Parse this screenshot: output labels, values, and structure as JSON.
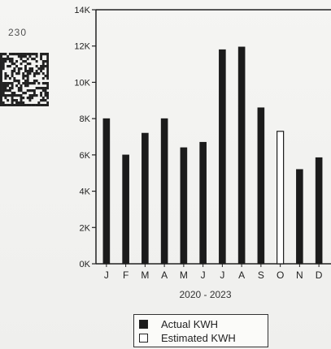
{
  "page": {
    "number": "230"
  },
  "chart_data": {
    "type": "bar",
    "categories": [
      "J",
      "F",
      "M",
      "A",
      "M",
      "J",
      "J",
      "A",
      "S",
      "O",
      "N",
      "D"
    ],
    "values": [
      8000,
      6000,
      7200,
      8000,
      6400,
      6700,
      11800,
      11950,
      8600,
      7300,
      5200,
      5850
    ],
    "value_types": [
      "actual",
      "actual",
      "actual",
      "actual",
      "actual",
      "actual",
      "actual",
      "actual",
      "actual",
      "estimated",
      "actual",
      "actual"
    ],
    "title": "",
    "xlabel": "2020 - 2023",
    "ylabel": "",
    "ylim": [
      0,
      14000
    ],
    "y_tick_values": [
      0,
      2000,
      4000,
      6000,
      8000,
      10000,
      12000,
      14000
    ],
    "y_tick_labels": [
      "0K",
      "2K",
      "4K",
      "6K",
      "8K",
      "10K",
      "12K",
      "14K"
    ],
    "legend_placement": "bottom",
    "series": [
      {
        "name": "Actual KWH",
        "color": "#1b1b1b"
      },
      {
        "name": "Estimated KWH",
        "color": "#ffffff"
      }
    ],
    "grid": false
  }
}
